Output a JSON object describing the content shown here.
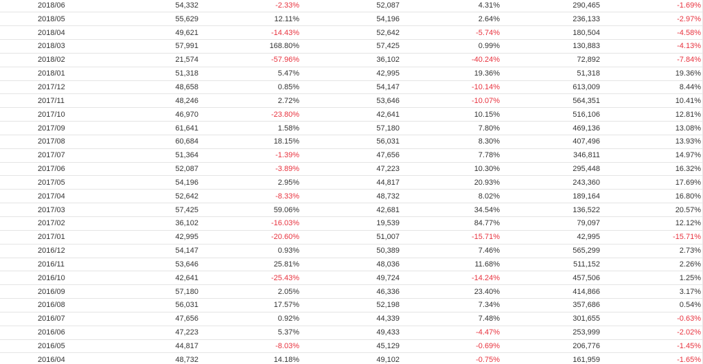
{
  "colors": {
    "negative": "#e8313d",
    "text": "#333333",
    "divider": "#e4e4e4"
  },
  "table": {
    "rows": [
      [
        "2018/06",
        "54,332",
        "-2.33%",
        "52,087",
        "4.31%",
        "290,465",
        "-1.69%"
      ],
      [
        "2018/05",
        "55,629",
        "12.11%",
        "54,196",
        "2.64%",
        "236,133",
        "-2.97%"
      ],
      [
        "2018/04",
        "49,621",
        "-14.43%",
        "52,642",
        "-5.74%",
        "180,504",
        "-4.58%"
      ],
      [
        "2018/03",
        "57,991",
        "168.80%",
        "57,425",
        "0.99%",
        "130,883",
        "-4.13%"
      ],
      [
        "2018/02",
        "21,574",
        "-57.96%",
        "36,102",
        "-40.24%",
        "72,892",
        "-7.84%"
      ],
      [
        "2018/01",
        "51,318",
        "5.47%",
        "42,995",
        "19.36%",
        "51,318",
        "19.36%"
      ],
      [
        "2017/12",
        "48,658",
        "0.85%",
        "54,147",
        "-10.14%",
        "613,009",
        "8.44%"
      ],
      [
        "2017/11",
        "48,246",
        "2.72%",
        "53,646",
        "-10.07%",
        "564,351",
        "10.41%"
      ],
      [
        "2017/10",
        "46,970",
        "-23.80%",
        "42,641",
        "10.15%",
        "516,106",
        "12.81%"
      ],
      [
        "2017/09",
        "61,641",
        "1.58%",
        "57,180",
        "7.80%",
        "469,136",
        "13.08%"
      ],
      [
        "2017/08",
        "60,684",
        "18.15%",
        "56,031",
        "8.30%",
        "407,496",
        "13.93%"
      ],
      [
        "2017/07",
        "51,364",
        "-1.39%",
        "47,656",
        "7.78%",
        "346,811",
        "14.97%"
      ],
      [
        "2017/06",
        "52,087",
        "-3.89%",
        "47,223",
        "10.30%",
        "295,448",
        "16.32%"
      ],
      [
        "2017/05",
        "54,196",
        "2.95%",
        "44,817",
        "20.93%",
        "243,360",
        "17.69%"
      ],
      [
        "2017/04",
        "52,642",
        "-8.33%",
        "48,732",
        "8.02%",
        "189,164",
        "16.80%"
      ],
      [
        "2017/03",
        "57,425",
        "59.06%",
        "42,681",
        "34.54%",
        "136,522",
        "20.57%"
      ],
      [
        "2017/02",
        "36,102",
        "-16.03%",
        "19,539",
        "84.77%",
        "79,097",
        "12.12%"
      ],
      [
        "2017/01",
        "42,995",
        "-20.60%",
        "51,007",
        "-15.71%",
        "42,995",
        "-15.71%"
      ],
      [
        "2016/12",
        "54,147",
        "0.93%",
        "50,389",
        "7.46%",
        "565,299",
        "2.73%"
      ],
      [
        "2016/11",
        "53,646",
        "25.81%",
        "48,036",
        "11.68%",
        "511,152",
        "2.26%"
      ],
      [
        "2016/10",
        "42,641",
        "-25.43%",
        "49,724",
        "-14.24%",
        "457,506",
        "1.25%"
      ],
      [
        "2016/09",
        "57,180",
        "2.05%",
        "46,336",
        "23.40%",
        "414,866",
        "3.17%"
      ],
      [
        "2016/08",
        "56,031",
        "17.57%",
        "52,198",
        "7.34%",
        "357,686",
        "0.54%"
      ],
      [
        "2016/07",
        "47,656",
        "0.92%",
        "44,339",
        "7.48%",
        "301,655",
        "-0.63%"
      ],
      [
        "2016/06",
        "47,223",
        "5.37%",
        "49,433",
        "-4.47%",
        "253,999",
        "-2.02%"
      ],
      [
        "2016/05",
        "44,817",
        "-8.03%",
        "45,129",
        "-0.69%",
        "206,776",
        "-1.45%"
      ],
      [
        "2016/04",
        "48,732",
        "14.18%",
        "49,102",
        "-0.75%",
        "161,959",
        "-1.65%"
      ]
    ]
  }
}
